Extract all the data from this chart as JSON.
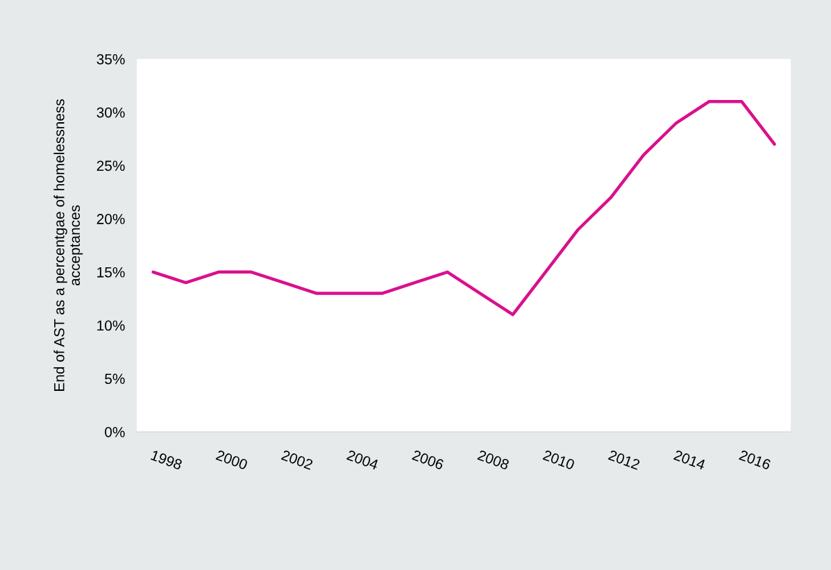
{
  "chart_data": {
    "type": "line",
    "ylabel": "End of AST as a percentgae of homelessness\nacceptances",
    "categories": [
      "1998",
      null,
      "2000",
      null,
      "2002",
      null,
      "2004",
      null,
      "2006",
      null,
      "2008",
      null,
      "2010",
      null,
      "2012",
      null,
      "2014",
      null,
      "2016",
      null
    ],
    "series": [
      {
        "color": "#d9108e",
        "values": [
          15,
          14,
          15,
          15,
          14,
          13,
          13,
          13,
          14,
          15,
          13,
          11,
          15,
          19,
          22,
          26,
          29,
          31,
          31,
          27
        ]
      }
    ],
    "ylim": [
      0,
      35
    ],
    "yticks": [
      {
        "value": 0,
        "label": "0%"
      },
      {
        "value": 5,
        "label": "5%"
      },
      {
        "value": 10,
        "label": "10%"
      },
      {
        "value": 15,
        "label": "15%"
      },
      {
        "value": 20,
        "label": "20%"
      },
      {
        "value": 25,
        "label": "25%"
      },
      {
        "value": 30,
        "label": "30%"
      },
      {
        "value": 35,
        "label": "35%"
      }
    ],
    "grid": false,
    "legend": false,
    "marker": "none",
    "line_style": "solid"
  }
}
